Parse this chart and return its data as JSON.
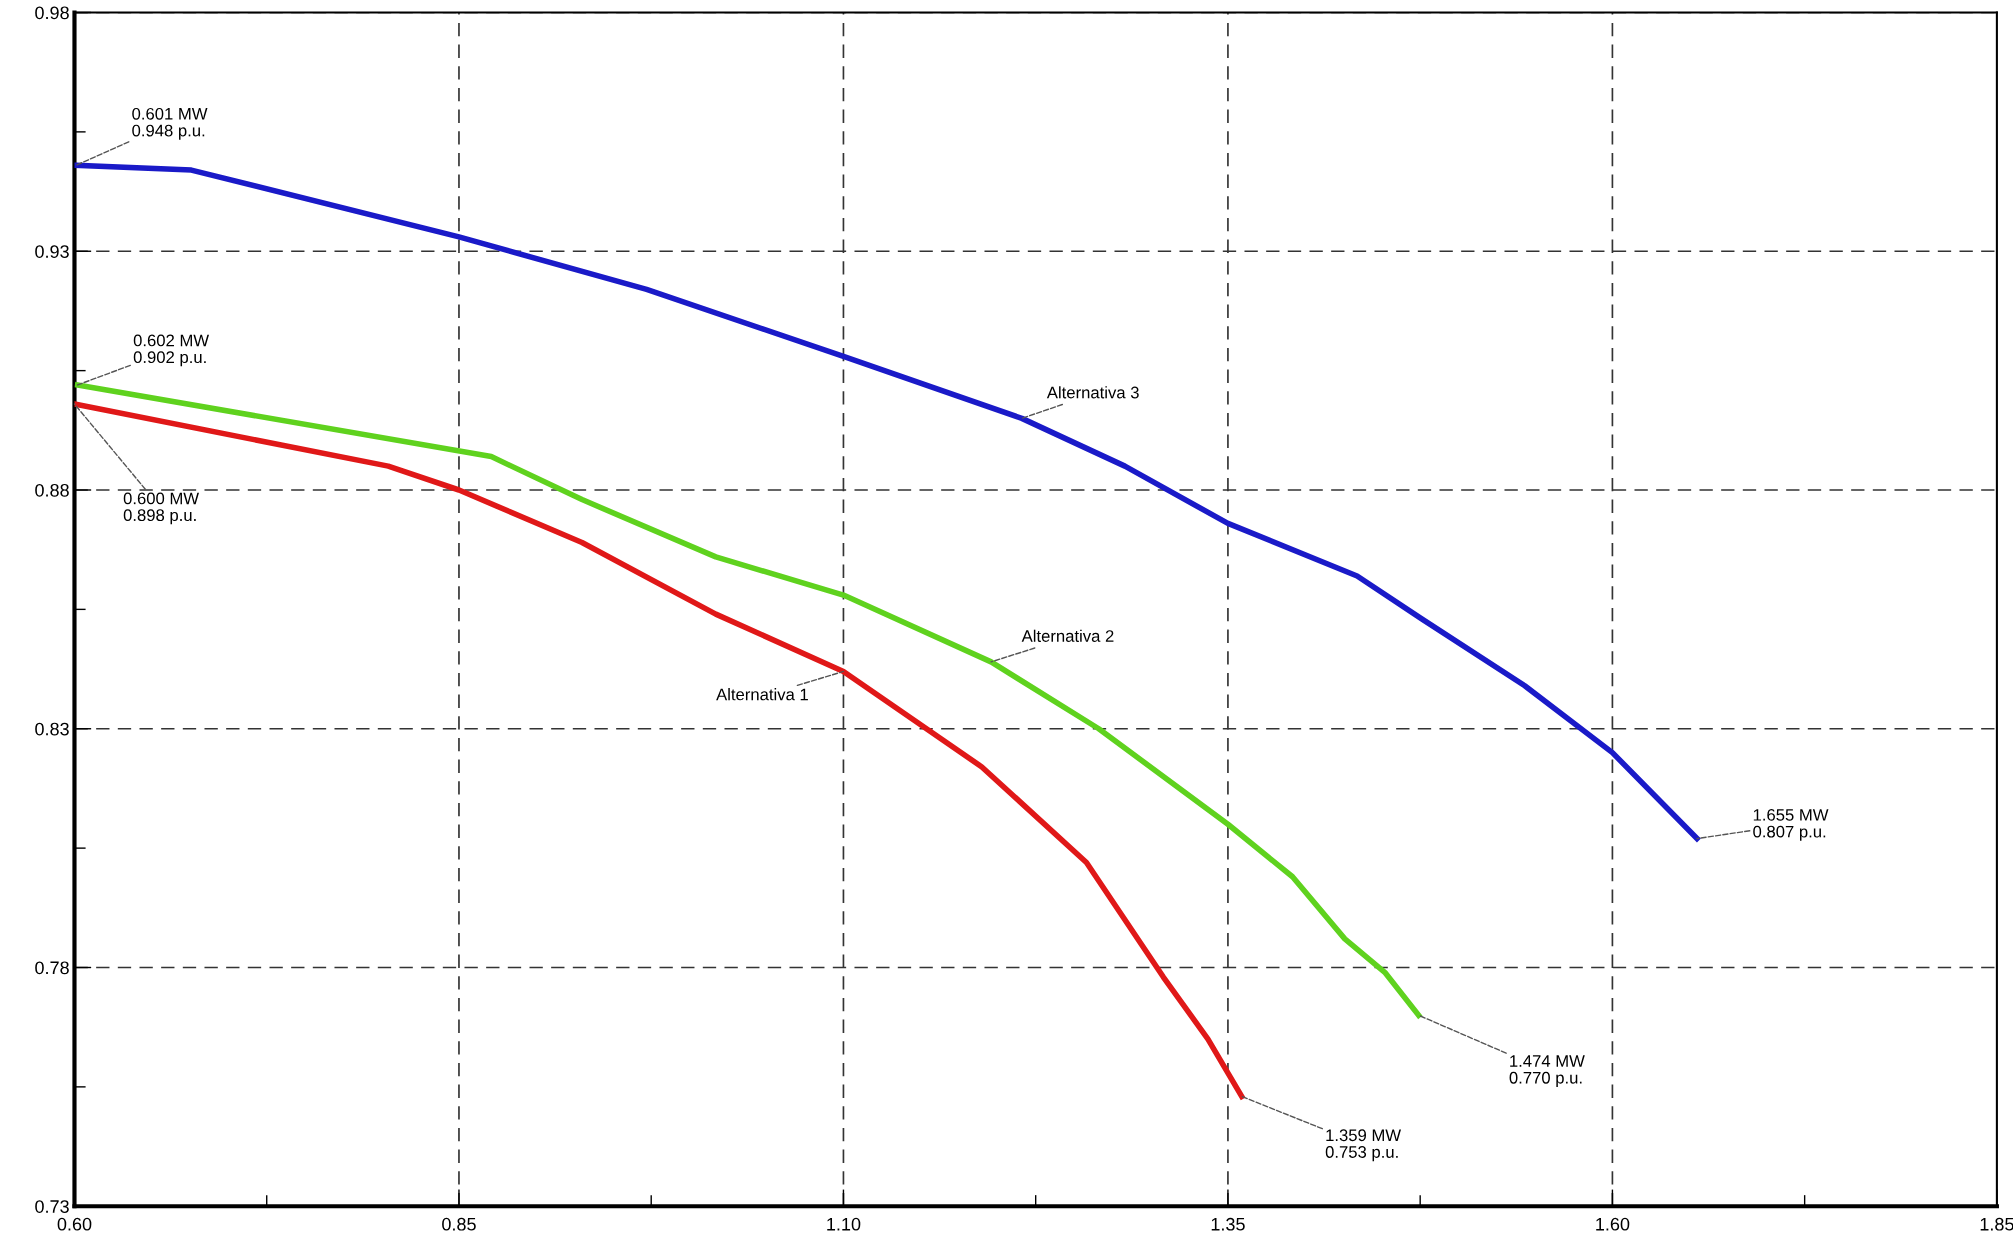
{
  "chart_data": {
    "type": "line",
    "xlim": [
      0.6,
      1.85
    ],
    "ylim": [
      0.73,
      0.98
    ],
    "xticks": [
      {
        "value": 0.6,
        "label": "0.60"
      },
      {
        "value": 0.725,
        "label": null
      },
      0.85,
      {
        "value": 0.975,
        "label": null
      },
      {
        "value": 1.1,
        "label": "1.10"
      },
      {
        "value": 1.225,
        "label": null
      },
      1.35,
      {
        "value": 1.475,
        "label": null
      },
      {
        "value": 1.6,
        "label": "1.60"
      },
      {
        "value": 1.725,
        "label": null
      },
      1.85
    ],
    "yticks": [
      0.73,
      {
        "value": 0.755,
        "label": null
      },
      0.78,
      {
        "value": 0.805,
        "label": null
      },
      0.83,
      {
        "value": 0.855,
        "label": null
      },
      0.88,
      {
        "value": 0.905,
        "label": null
      },
      0.93,
      {
        "value": 0.955,
        "label": null
      },
      0.98
    ],
    "grid": true,
    "line_style": "solid",
    "marker": "none",
    "series": [
      {
        "name": "Alternativa 1",
        "color": "#e01818",
        "x": [
          0.6,
          0.804,
          0.85,
          0.93,
          1.017,
          1.1,
          1.19,
          1.258,
          1.308,
          1.337,
          1.359
        ],
        "values": [
          0.898,
          0.885,
          0.88,
          0.869,
          0.854,
          0.842,
          0.822,
          0.802,
          0.778,
          0.765,
          0.753
        ]
      },
      {
        "name": "Alternativa 2",
        "color": "#5fd21e",
        "x": [
          0.602,
          0.871,
          0.93,
          1.017,
          1.1,
          1.196,
          1.266,
          1.35,
          1.392,
          1.426,
          1.452,
          1.474
        ],
        "values": [
          0.902,
          0.887,
          0.878,
          0.866,
          0.858,
          0.844,
          0.83,
          0.81,
          0.799,
          0.786,
          0.779,
          0.77
        ]
      },
      {
        "name": "Alternativa 3",
        "color": "#1a1ac8",
        "x": [
          0.601,
          0.676,
          0.85,
          0.972,
          1.1,
          1.216,
          1.283,
          1.35,
          1.434,
          1.476,
          1.543,
          1.6,
          1.655
        ],
        "values": [
          0.948,
          0.947,
          0.933,
          0.922,
          0.908,
          0.895,
          0.885,
          0.873,
          0.862,
          0.853,
          0.839,
          0.825,
          0.807
        ]
      }
    ],
    "annotations": [
      {
        "text": "0.601 MW\n0.948 p.u.",
        "x": 0.601,
        "y": 0.948
      },
      {
        "text": "0.602 MW\n0.902 p.u.",
        "x": 0.602,
        "y": 0.902
      },
      {
        "text": "0.600 MW\n0.898 p.u.",
        "x": 0.6,
        "y": 0.898
      },
      {
        "text": "1.655 MW\n0.807 p.u.",
        "x": 1.655,
        "y": 0.807
      },
      {
        "text": "1.474 MW\n0.770 p.u.",
        "x": 1.474,
        "y": 0.77
      },
      {
        "text": "1.359 MW\n0.753 p.u.",
        "x": 1.359,
        "y": 0.753
      }
    ]
  }
}
